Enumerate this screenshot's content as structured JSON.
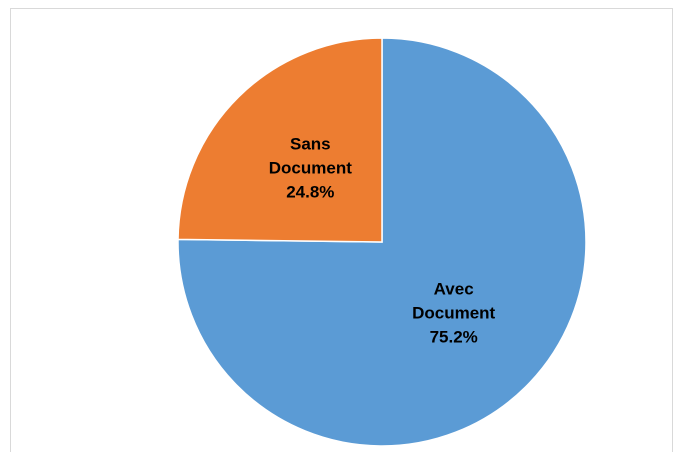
{
  "chart_data": {
    "type": "pie",
    "categories": [
      "Avec Document",
      "Sans Document"
    ],
    "values": [
      75.2,
      24.8
    ],
    "value_labels": [
      "75.2%",
      "24.8%"
    ],
    "colors": [
      "#5b9bd5",
      "#ed7d31"
    ]
  }
}
